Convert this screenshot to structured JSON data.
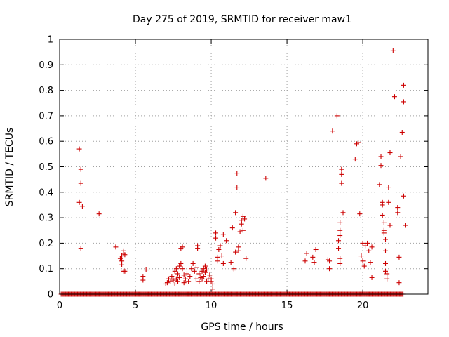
{
  "chart_data": {
    "type": "scatter",
    "title": "Day 275 of 2019, SRMTID for receiver maw1",
    "xlabel": "GPS time / hours",
    "ylabel": "SRMTID / TECUs",
    "xlim": [
      0,
      24.3
    ],
    "ylim": [
      0,
      1
    ],
    "xticks": [
      0,
      5,
      10,
      15,
      20
    ],
    "xtick_labels": [
      "0",
      "5",
      "10",
      "15",
      "20"
    ],
    "yticks": [
      0,
      0.1,
      0.2,
      0.3,
      0.4,
      0.5,
      0.6,
      0.7,
      0.8,
      0.9,
      1
    ],
    "ytick_labels": [
      "0",
      "0.1",
      "0.2",
      "0.3",
      "0.4",
      "0.5",
      "0.6",
      "0.7",
      "0.8",
      "0.9",
      "1"
    ],
    "grid": true,
    "legend": "none",
    "marker": "+",
    "series": [
      {
        "name": "maw1",
        "color": "#cc0000",
        "points": [
          [
            1.3,
            0.57
          ],
          [
            1.4,
            0.49
          ],
          [
            1.4,
            0.435
          ],
          [
            1.3,
            0.36
          ],
          [
            1.5,
            0.345
          ],
          [
            1.4,
            0.18
          ],
          [
            2.6,
            0.315
          ],
          [
            3.7,
            0.185
          ],
          [
            4.0,
            0.14
          ],
          [
            4.1,
            0.15
          ],
          [
            4.1,
            0.13
          ],
          [
            4.2,
            0.17
          ],
          [
            4.2,
            0.16
          ],
          [
            4.3,
            0.155
          ],
          [
            4.1,
            0.115
          ],
          [
            4.3,
            0.09
          ],
          [
            4.2,
            0.09
          ],
          [
            5.5,
            0.055
          ],
          [
            5.5,
            0.07
          ],
          [
            5.7,
            0.095
          ],
          [
            7.0,
            0.04
          ],
          [
            7.1,
            0.045
          ],
          [
            7.2,
            0.06
          ],
          [
            7.3,
            0.05
          ],
          [
            7.4,
            0.07
          ],
          [
            7.5,
            0.055
          ],
          [
            7.6,
            0.09
          ],
          [
            7.6,
            0.04
          ],
          [
            7.7,
            0.1
          ],
          [
            7.7,
            0.06
          ],
          [
            7.8,
            0.08
          ],
          [
            7.8,
            0.05
          ],
          [
            7.9,
            0.11
          ],
          [
            7.9,
            0.065
          ],
          [
            8.0,
            0.12
          ],
          [
            8.0,
            0.18
          ],
          [
            8.1,
            0.185
          ],
          [
            8.1,
            0.1
          ],
          [
            8.2,
            0.075
          ],
          [
            8.2,
            0.045
          ],
          [
            8.3,
            0.06
          ],
          [
            8.4,
            0.08
          ],
          [
            8.5,
            0.05
          ],
          [
            8.6,
            0.07
          ],
          [
            8.7,
            0.1
          ],
          [
            8.8,
            0.12
          ],
          [
            8.9,
            0.09
          ],
          [
            9.0,
            0.105
          ],
          [
            9.0,
            0.06
          ],
          [
            9.1,
            0.18
          ],
          [
            9.1,
            0.19
          ],
          [
            9.2,
            0.08
          ],
          [
            9.2,
            0.05
          ],
          [
            9.3,
            0.065
          ],
          [
            9.4,
            0.06
          ],
          [
            9.4,
            0.09
          ],
          [
            9.5,
            0.1
          ],
          [
            9.5,
            0.07
          ],
          [
            9.6,
            0.11
          ],
          [
            9.6,
            0.085
          ],
          [
            9.7,
            0.05
          ],
          [
            9.7,
            0.095
          ],
          [
            9.8,
            0.06
          ],
          [
            9.9,
            0.075
          ],
          [
            10.0,
            0.05
          ],
          [
            10.0,
            0.06
          ],
          [
            10.1,
            0.02
          ],
          [
            10.1,
            0.04
          ],
          [
            10.3,
            0.24
          ],
          [
            10.3,
            0.22
          ],
          [
            10.4,
            0.145
          ],
          [
            10.4,
            0.13
          ],
          [
            10.5,
            0.175
          ],
          [
            10.6,
            0.19
          ],
          [
            10.7,
            0.15
          ],
          [
            10.8,
            0.235
          ],
          [
            10.8,
            0.12
          ],
          [
            11.0,
            0.21
          ],
          [
            11.3,
            0.125
          ],
          [
            11.4,
            0.26
          ],
          [
            11.5,
            0.095
          ],
          [
            11.5,
            0.1
          ],
          [
            11.6,
            0.32
          ],
          [
            11.6,
            0.165
          ],
          [
            11.7,
            0.475
          ],
          [
            11.7,
            0.42
          ],
          [
            11.8,
            0.185
          ],
          [
            11.8,
            0.17
          ],
          [
            11.9,
            0.245
          ],
          [
            12.0,
            0.29
          ],
          [
            12.0,
            0.275
          ],
          [
            12.1,
            0.305
          ],
          [
            12.1,
            0.25
          ],
          [
            12.2,
            0.295
          ],
          [
            12.3,
            0.14
          ],
          [
            13.6,
            0.455
          ],
          [
            16.2,
            0.13
          ],
          [
            16.3,
            0.16
          ],
          [
            16.7,
            0.145
          ],
          [
            16.8,
            0.125
          ],
          [
            16.9,
            0.175
          ],
          [
            17.7,
            0.135
          ],
          [
            17.8,
            0.13
          ],
          [
            17.8,
            0.1
          ],
          [
            18.0,
            0.64
          ],
          [
            18.3,
            0.7
          ],
          [
            18.4,
            0.21
          ],
          [
            18.4,
            0.18
          ],
          [
            18.5,
            0.28
          ],
          [
            18.5,
            0.25
          ],
          [
            18.5,
            0.23
          ],
          [
            18.5,
            0.14
          ],
          [
            18.5,
            0.12
          ],
          [
            18.6,
            0.49
          ],
          [
            18.6,
            0.47
          ],
          [
            18.6,
            0.435
          ],
          [
            18.7,
            0.32
          ],
          [
            19.5,
            0.53
          ],
          [
            19.6,
            0.59
          ],
          [
            19.7,
            0.595
          ],
          [
            19.8,
            0.315
          ],
          [
            19.9,
            0.15
          ],
          [
            20.0,
            0.2
          ],
          [
            20.0,
            0.13
          ],
          [
            20.1,
            0.11
          ],
          [
            20.2,
            0.19
          ],
          [
            20.3,
            0.2
          ],
          [
            20.4,
            0.17
          ],
          [
            20.5,
            0.125
          ],
          [
            20.6,
            0.065
          ],
          [
            20.6,
            0.185
          ],
          [
            21.1,
            0.43
          ],
          [
            21.2,
            0.54
          ],
          [
            21.2,
            0.505
          ],
          [
            21.3,
            0.36
          ],
          [
            21.3,
            0.35
          ],
          [
            21.3,
            0.31
          ],
          [
            21.4,
            0.28
          ],
          [
            21.4,
            0.25
          ],
          [
            21.4,
            0.24
          ],
          [
            21.5,
            0.215
          ],
          [
            21.5,
            0.17
          ],
          [
            21.5,
            0.12
          ],
          [
            21.5,
            0.09
          ],
          [
            21.6,
            0.08
          ],
          [
            21.6,
            0.06
          ],
          [
            21.7,
            0.36
          ],
          [
            21.7,
            0.42
          ],
          [
            21.8,
            0.555
          ],
          [
            21.8,
            0.27
          ],
          [
            22.0,
            0.955
          ],
          [
            22.1,
            0.775
          ],
          [
            22.3,
            0.34
          ],
          [
            22.3,
            0.32
          ],
          [
            22.4,
            0.145
          ],
          [
            22.4,
            0.045
          ],
          [
            22.5,
            0.54
          ],
          [
            22.6,
            0.635
          ],
          [
            22.7,
            0.82
          ],
          [
            22.7,
            0.755
          ],
          [
            22.7,
            0.385
          ],
          [
            22.8,
            0.27
          ]
        ],
        "baseline_x_range": [
          0.1,
          22.7
        ],
        "baseline_y": 0
      }
    ]
  },
  "colors": {
    "series": "#cc0000",
    "axis": "#000000",
    "grid": "#a0a0a0"
  }
}
